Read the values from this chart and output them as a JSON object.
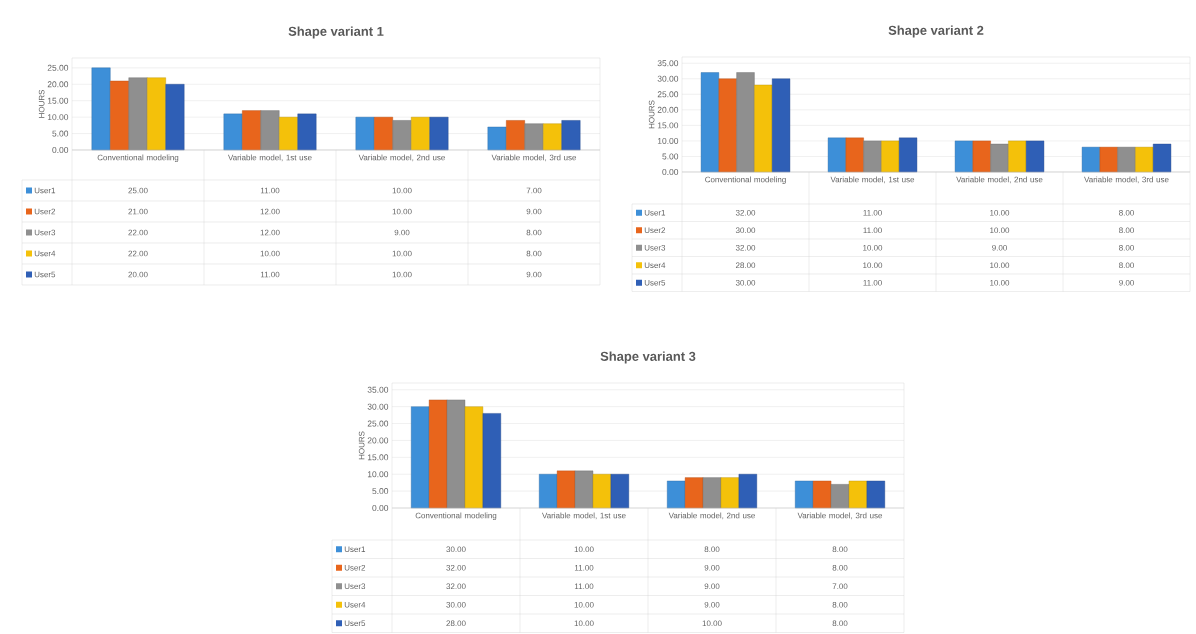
{
  "chart_data": [
    {
      "type": "bar",
      "title": "Shape variant 1",
      "ylabel": "HOURS",
      "categories": [
        "Conventional modeling",
        "Variable model, 1st use",
        "Variable model, 2nd use",
        "Variable model, 3rd use"
      ],
      "series": [
        {
          "name": "User1",
          "color": "#3d8fd8",
          "values": [
            25,
            11,
            10,
            7
          ],
          "value_labels": [
            "25.00",
            "11.00",
            "10.00",
            "7.00"
          ]
        },
        {
          "name": "User2",
          "color": "#e8651c",
          "values": [
            21,
            12,
            10,
            9
          ],
          "value_labels": [
            "21.00",
            "12.00",
            "10.00",
            "9.00"
          ]
        },
        {
          "name": "User3",
          "color": "#8f8f8f",
          "values": [
            22,
            12,
            9,
            8
          ],
          "value_labels": [
            "22.00",
            "12.00",
            "9.00",
            "8.00"
          ]
        },
        {
          "name": "User4",
          "color": "#f4c10a",
          "values": [
            22,
            10,
            10,
            8
          ],
          "value_labels": [
            "22.00",
            "10.00",
            "10.00",
            "8.00"
          ]
        },
        {
          "name": "User5",
          "color": "#2f5fb6",
          "values": [
            20,
            11,
            10,
            9
          ],
          "value_labels": [
            "20.00",
            "11.00",
            "10.00",
            "9.00"
          ]
        }
      ],
      "ylim": [
        0,
        28
      ],
      "yticks": [
        {
          "value": 0,
          "label": "0.00"
        },
        {
          "value": 5,
          "label": "5.00"
        },
        {
          "value": 10,
          "label": "10.00"
        },
        {
          "value": 15,
          "label": "15.00"
        },
        {
          "value": 20,
          "label": "20.00"
        },
        {
          "value": 25,
          "label": "25.00"
        }
      ],
      "grid": "y",
      "legend": "bottom"
    },
    {
      "type": "bar",
      "title": "Shape variant 2",
      "ylabel": "HOURS",
      "categories": [
        "Conventional modeling",
        "Variable model, 1st use",
        "Variable model, 2nd use",
        "Variable model, 3rd use"
      ],
      "series": [
        {
          "name": "User1",
          "color": "#3d8fd8",
          "values": [
            32,
            11,
            10,
            8
          ],
          "value_labels": [
            "32.00",
            "11.00",
            "10.00",
            "8.00"
          ]
        },
        {
          "name": "User2",
          "color": "#e8651c",
          "values": [
            30,
            11,
            10,
            8
          ],
          "value_labels": [
            "30.00",
            "11.00",
            "10.00",
            "8.00"
          ]
        },
        {
          "name": "User3",
          "color": "#8f8f8f",
          "values": [
            32,
            10,
            9,
            8
          ],
          "value_labels": [
            "32.00",
            "10.00",
            "9.00",
            "8.00"
          ]
        },
        {
          "name": "User4",
          "color": "#f4c10a",
          "values": [
            28,
            10,
            10,
            8
          ],
          "value_labels": [
            "28.00",
            "10.00",
            "10.00",
            "8.00"
          ]
        },
        {
          "name": "User5",
          "color": "#2f5fb6",
          "values": [
            30,
            11,
            10,
            9
          ],
          "value_labels": [
            "30.00",
            "11.00",
            "10.00",
            "9.00"
          ]
        }
      ],
      "ylim": [
        0,
        37
      ],
      "yticks": [
        {
          "value": 0,
          "label": "0.00"
        },
        {
          "value": 5,
          "label": "5.00"
        },
        {
          "value": 10,
          "label": "10.00"
        },
        {
          "value": 15,
          "label": "15.00"
        },
        {
          "value": 20,
          "label": "20.00"
        },
        {
          "value": 25,
          "label": "25.00"
        },
        {
          "value": 30,
          "label": "30.00"
        },
        {
          "value": 35,
          "label": "35.00"
        }
      ],
      "grid": "y",
      "legend": "bottom"
    },
    {
      "type": "bar",
      "title": "Shape variant 3",
      "ylabel": "HOURS",
      "categories": [
        "Conventional modeling",
        "Variable model, 1st use",
        "Variable model, 2nd use",
        "Variable model, 3rd use"
      ],
      "series": [
        {
          "name": "User1",
          "color": "#3d8fd8",
          "values": [
            30,
            10,
            8,
            8
          ],
          "value_labels": [
            "30.00",
            "10.00",
            "8.00",
            "8.00"
          ]
        },
        {
          "name": "User2",
          "color": "#e8651c",
          "values": [
            32,
            11,
            9,
            8
          ],
          "value_labels": [
            "32.00",
            "11.00",
            "9.00",
            "8.00"
          ]
        },
        {
          "name": "User3",
          "color": "#8f8f8f",
          "values": [
            32,
            11,
            9,
            7
          ],
          "value_labels": [
            "32.00",
            "11.00",
            "9.00",
            "7.00"
          ]
        },
        {
          "name": "User4",
          "color": "#f4c10a",
          "values": [
            30,
            10,
            9,
            8
          ],
          "value_labels": [
            "30.00",
            "10.00",
            "9.00",
            "8.00"
          ]
        },
        {
          "name": "User5",
          "color": "#2f5fb6",
          "values": [
            28,
            10,
            10,
            8
          ],
          "value_labels": [
            "28.00",
            "10.00",
            "10.00",
            "8.00"
          ]
        }
      ],
      "ylim": [
        0,
        37
      ],
      "yticks": [
        {
          "value": 0,
          "label": "0.00"
        },
        {
          "value": 5,
          "label": "5.00"
        },
        {
          "value": 10,
          "label": "10.00"
        },
        {
          "value": 15,
          "label": "15.00"
        },
        {
          "value": 20,
          "label": "20.00"
        },
        {
          "value": 25,
          "label": "25.00"
        },
        {
          "value": 30,
          "label": "30.00"
        },
        {
          "value": 35,
          "label": "35.00"
        }
      ],
      "grid": "y",
      "legend": "bottom"
    }
  ]
}
